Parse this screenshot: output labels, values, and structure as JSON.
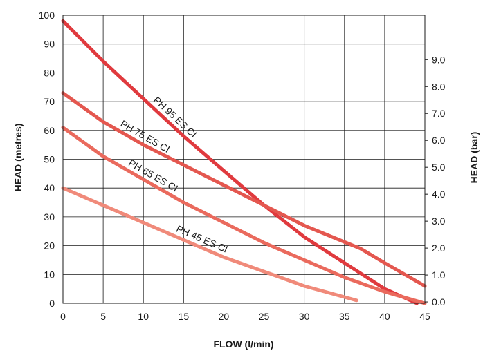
{
  "chart_data": {
    "type": "line",
    "xlabel": "FLOW (l/min)",
    "ylabel": "HEAD (metres)",
    "y2label": "HEAD (bar)",
    "xlim": [
      0,
      45
    ],
    "ylim": [
      0,
      100
    ],
    "y2lim": [
      -0.05,
      10.65
    ],
    "x_ticks": [
      "0",
      "5",
      "10",
      "15",
      "20",
      "25",
      "30",
      "35",
      "40",
      "45"
    ],
    "y_ticks": [
      "0",
      "10",
      "20",
      "30",
      "40",
      "50",
      "60",
      "70",
      "80",
      "90",
      "100"
    ],
    "y2_ticks": [
      "0.0",
      "1.0",
      "2.0",
      "3.0",
      "4.0",
      "5.0",
      "6.0",
      "7.0",
      "8.0",
      "9.0"
    ],
    "grid": true,
    "series": [
      {
        "name": "PH 95 ES CI",
        "color": "#e03a3e",
        "x": [
          0,
          5,
          10,
          15,
          20,
          25,
          30,
          35,
          40,
          44
        ],
        "y": [
          98,
          84,
          71,
          58,
          46,
          34,
          23,
          14,
          5,
          0
        ]
      },
      {
        "name": "PH 75 ES CI",
        "color": "#e4574f",
        "x": [
          0,
          5,
          10,
          15,
          20,
          25,
          30,
          37,
          40,
          45
        ],
        "y": [
          73,
          63,
          55,
          48,
          41,
          34,
          27,
          19,
          14,
          6
        ]
      },
      {
        "name": "PH 65 ES CI",
        "color": "#ea6a5d",
        "x": [
          0,
          5,
          10,
          15,
          20,
          25,
          30,
          35,
          40,
          45
        ],
        "y": [
          61,
          51,
          43,
          35,
          28,
          21,
          15,
          9,
          4,
          0
        ]
      },
      {
        "name": "PH 45 ES CI",
        "color": "#f08a7a",
        "x": [
          0,
          5,
          10,
          15,
          20,
          25,
          30,
          36.5
        ],
        "y": [
          40,
          34,
          28,
          22,
          16,
          11,
          6,
          1
        ]
      }
    ]
  }
}
